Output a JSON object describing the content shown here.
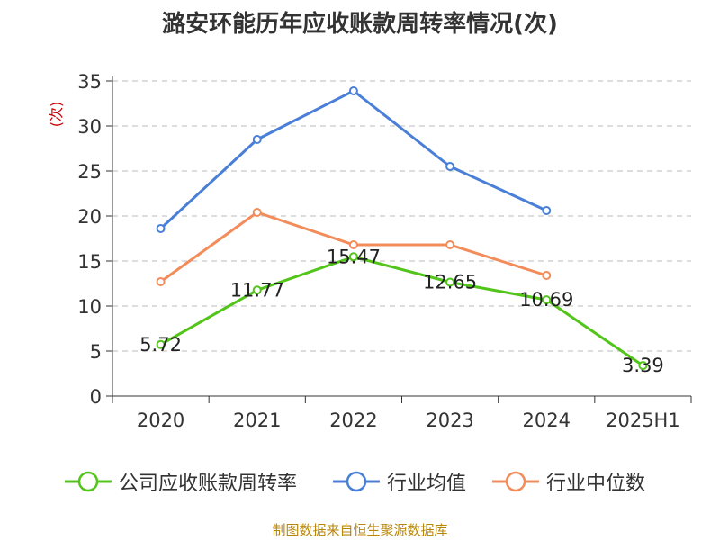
{
  "chart_data": {
    "type": "line",
    "title": "潞安环能历年应收账款周转率情况(次)",
    "ylabel": "(次)",
    "categories": [
      "2020",
      "2021",
      "2022",
      "2023",
      "2024",
      "2025H1"
    ],
    "ylim": [
      0,
      35
    ],
    "yticks": [
      0,
      5,
      10,
      15,
      20,
      25,
      30,
      35
    ],
    "grid": true,
    "legend_position": "bottom",
    "series": [
      {
        "name": "公司应收账款周转率",
        "color": "#52c41a",
        "values": [
          5.72,
          11.77,
          15.47,
          12.65,
          10.69,
          3.39
        ],
        "labels": [
          "5.72",
          "11.77",
          "15.47",
          "12.65",
          "10.69",
          "3.39"
        ]
      },
      {
        "name": "行业均值",
        "color": "#4a7fd8",
        "values": [
          18.6,
          28.5,
          33.9,
          25.5,
          20.6,
          null
        ]
      },
      {
        "name": "行业中位数",
        "color": "#f28c5a",
        "values": [
          12.7,
          20.4,
          16.8,
          16.8,
          13.4,
          null
        ]
      }
    ]
  },
  "source": "制图数据来自恒生聚源数据库"
}
